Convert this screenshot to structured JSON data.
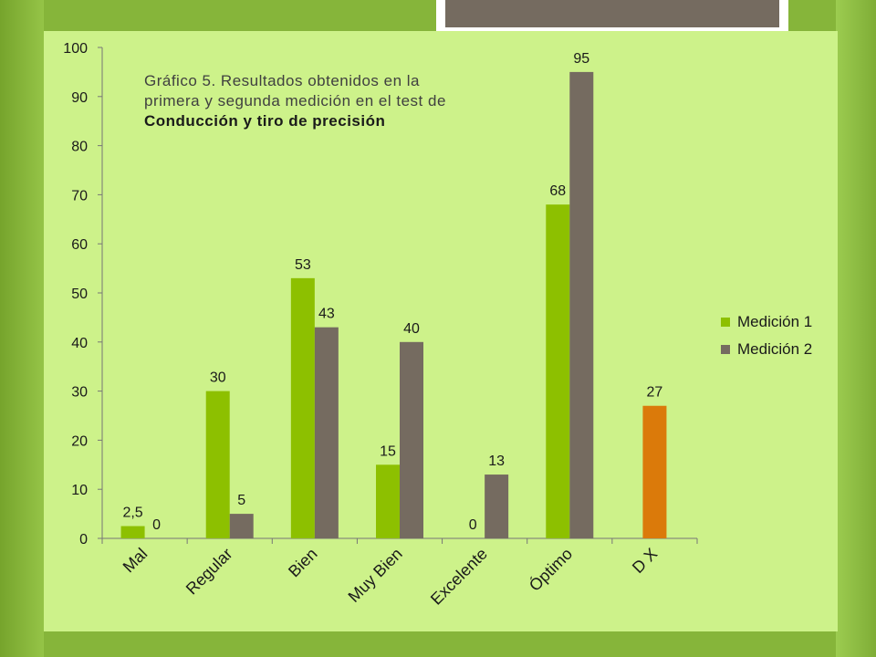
{
  "title": {
    "line1": "Gráfico  5. Resultados obtenidos en la",
    "line2": "primera y segunda medición en el test de",
    "line3": "Conducción y tiro de precisión"
  },
  "chart_data": {
    "type": "bar",
    "categories": [
      "Mal",
      "Regular",
      "Bien",
      "Muy Bien",
      "Excelente",
      "Óptimo",
      "D X"
    ],
    "series": [
      {
        "name": "Medición 1",
        "color": "#8dc000",
        "values": [
          2.5,
          30,
          53,
          15,
          0,
          68,
          27
        ],
        "labels": [
          "2,5",
          "30",
          "53",
          "15",
          "0",
          "68",
          "27"
        ]
      },
      {
        "name": "Medición 2",
        "color": "#756b60",
        "values": [
          0,
          5,
          43,
          40,
          13,
          95,
          null
        ],
        "labels": [
          "0",
          "5",
          "43",
          "40",
          "13",
          "95",
          ""
        ]
      }
    ],
    "highlight": {
      "category": "D X",
      "color": "#db7a0a"
    },
    "ylim": [
      0,
      100
    ],
    "yticks": [
      0,
      10,
      20,
      30,
      40,
      50,
      60,
      70,
      80,
      90,
      100
    ],
    "grid": false,
    "legend_position": "right"
  }
}
